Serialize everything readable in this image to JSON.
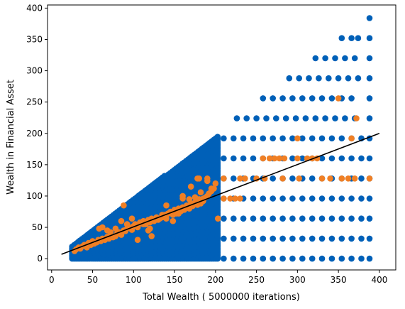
{
  "chart_data": {
    "type": "scatter",
    "title": "",
    "xlabel": "Total Wealth ( 5000000 iterations)",
    "ylabel": "Wealth in Financial Asset",
    "xlim": [
      -5,
      420
    ],
    "ylim": [
      -18,
      405
    ],
    "xticks": [
      "0",
      "50",
      "100",
      "150",
      "200",
      "250",
      "300",
      "350",
      "400"
    ],
    "yticks": [
      "0",
      "50",
      "100",
      "150",
      "200",
      "250",
      "300",
      "350",
      "400"
    ],
    "grid": false,
    "colors": {
      "blue": "#0060b8",
      "orange": "#f07f24",
      "line": "#000000"
    },
    "series": [
      {
        "color_key": "blue",
        "description_type": "dense_region",
        "x_range": [
          25,
          205
        ],
        "y_range": [
          0,
          200
        ]
      },
      {
        "color_key": "blue",
        "levels": [
          0,
          32,
          64,
          96,
          128,
          160,
          192
        ],
        "x": [
          210,
          222,
          234,
          246,
          258,
          270,
          282,
          294,
          306,
          318,
          330,
          342,
          354,
          366,
          378,
          388
        ]
      },
      {
        "color_key": "blue",
        "rows": [
          {
            "y": 224,
            "x": [
              226,
              238,
              250,
              262,
              274,
              286,
              298,
              310,
              322,
              334,
              346,
              358,
              370,
              388
            ]
          },
          {
            "y": 256,
            "x": [
              258,
              270,
              282,
              294,
              306,
              318,
              330,
              342,
              354,
              366,
              388
            ]
          },
          {
            "y": 288,
            "x": [
              290,
              302,
              314,
              326,
              338,
              350,
              362,
              374,
              388
            ]
          },
          {
            "y": 320,
            "x": [
              322,
              334,
              346,
              358,
              370,
              388
            ]
          },
          {
            "y": 352,
            "x": [
              354,
              366,
              374,
              388
            ]
          },
          {
            "y": 384,
            "x": [
              388
            ]
          }
        ]
      },
      {
        "color_key": "orange",
        "x": [
          28,
          30,
          33,
          35,
          38,
          40,
          43,
          45,
          48,
          50,
          52,
          55,
          57,
          60,
          62,
          65,
          68,
          70,
          72,
          75,
          78,
          80,
          82,
          85,
          88,
          90,
          92,
          95,
          98,
          100,
          102,
          105,
          108,
          110,
          112,
          115,
          118,
          120,
          122,
          125,
          128,
          130,
          132,
          135,
          138,
          140,
          142,
          145,
          148,
          150,
          152,
          155,
          158,
          160,
          162,
          165,
          168,
          170,
          172,
          175,
          178,
          180,
          182,
          185,
          188,
          190,
          192,
          195,
          198,
          203,
          58,
          62,
          68,
          72,
          78,
          85,
          88,
          92,
          98,
          105,
          112,
          118,
          122,
          128,
          135,
          140,
          148,
          155,
          160,
          168,
          175,
          178,
          182,
          185,
          190,
          195,
          120,
          140,
          160,
          170,
          180,
          190,
          200,
          210,
          218,
          224,
          230,
          236,
          258,
          266,
          272,
          278,
          284,
          300,
          312,
          318,
          324,
          340,
          362,
          388,
          210,
          230,
          250,
          260,
          282,
          302,
          330,
          354,
          370,
          300,
          366,
          350,
          372
        ],
        "y": [
          12,
          15,
          18,
          16,
          20,
          22,
          18,
          25,
          22,
          28,
          24,
          26,
          30,
          28,
          32,
          30,
          35,
          32,
          38,
          34,
          36,
          40,
          42,
          38,
          45,
          44,
          48,
          50,
          46,
          52,
          55,
          50,
          58,
          56,
          60,
          55,
          62,
          58,
          64,
          60,
          66,
          62,
          64,
          66,
          70,
          68,
          72,
          75,
          70,
          78,
          72,
          80,
          76,
          82,
          78,
          85,
          80,
          88,
          84,
          90,
          86,
          95,
          88,
          92,
          98,
          100,
          104,
          108,
          112,
          64,
          48,
          50,
          45,
          42,
          48,
          60,
          85,
          55,
          64,
          30,
          55,
          45,
          36,
          64,
          70,
          85,
          60,
          72,
          100,
          95,
          98,
          128,
          106,
          96,
          128,
          112,
          48,
          64,
          96,
          115,
          128,
          124,
          120,
          96,
          96,
          96,
          96,
          128,
          160,
          160,
          160,
          160,
          160,
          160,
          160,
          160,
          160,
          128,
          128,
          128,
          128,
          128,
          128,
          128,
          128,
          128,
          128,
          128,
          128,
          192,
          192,
          256,
          224
        ]
      }
    ],
    "regression_line": {
      "x": [
        12,
        400
      ],
      "y": [
        7,
        200
      ]
    }
  }
}
